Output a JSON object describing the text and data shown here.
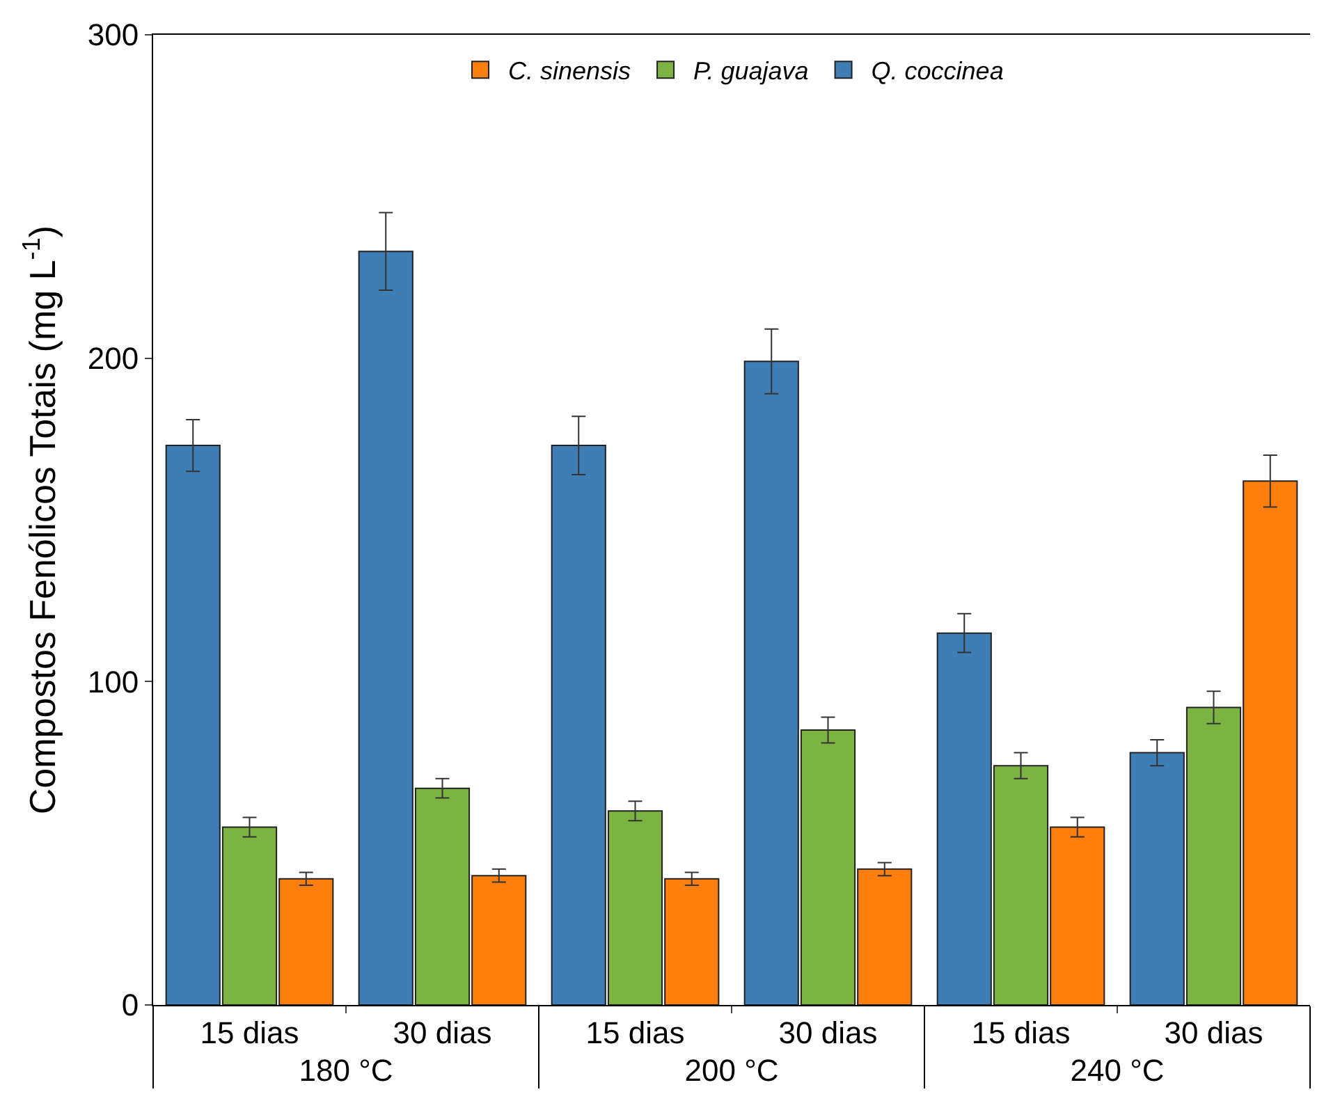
{
  "chart_data": {
    "type": "bar",
    "ylabel": "Compostos Fenólicos Totais (mg L$^{-1}$)",
    "categories": [
      "15 dias",
      "30 dias",
      "15 dias",
      "30 dias",
      "15 dias",
      "30 dias"
    ],
    "annotations": [
      "180 °C",
      "200 °C",
      "240 °C"
    ],
    "series": [
      {
        "name": "Q. coccinea",
        "color": "#3f7db5",
        "values": [
          173,
          233,
          173,
          199,
          115,
          78
        ],
        "errors": [
          8,
          12,
          9,
          10,
          6,
          4
        ]
      },
      {
        "name": "P. guajava",
        "color": "#7cb342",
        "values": [
          55,
          67,
          60,
          85,
          74,
          92
        ],
        "errors": [
          3,
          3,
          3,
          4,
          4,
          5
        ]
      },
      {
        "name": "C. sinensis",
        "color": "#ff7f0e",
        "values": [
          39,
          40,
          39,
          42,
          55,
          162
        ],
        "errors": [
          2,
          2,
          2,
          2,
          3,
          8
        ]
      }
    ],
    "ylim": [
      0,
      300
    ],
    "yticks": [
      0,
      100,
      200,
      300
    ],
    "legend": "top"
  }
}
